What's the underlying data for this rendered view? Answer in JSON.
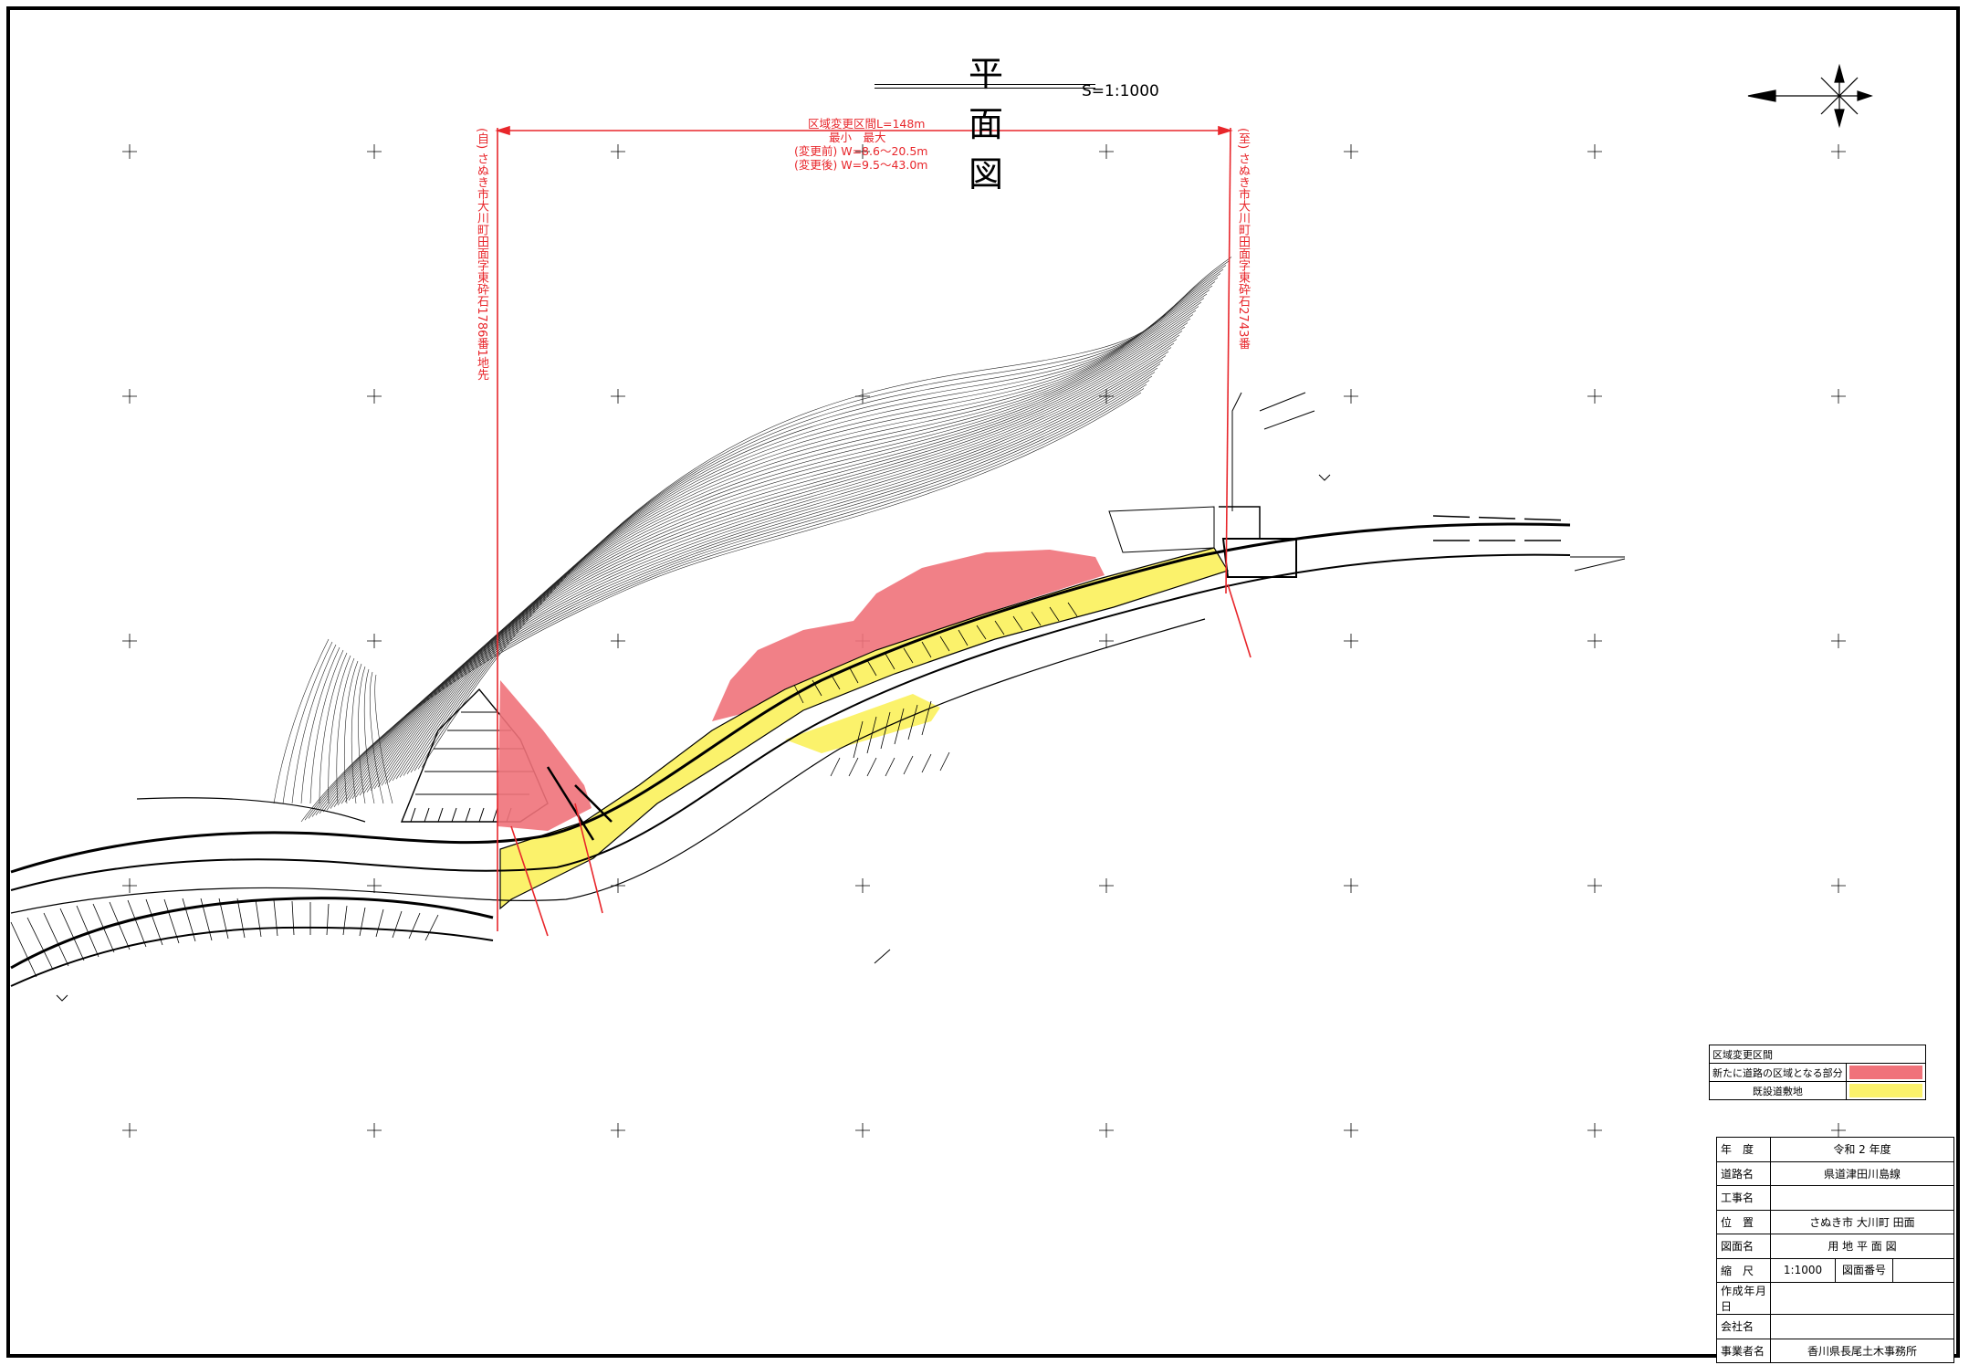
{
  "title": "平　面　図",
  "scale_text": "S=1:1000",
  "annotation": {
    "section_length": "区域変更区間L=148m",
    "header": "最小　最大",
    "before": "(変更前) W=8.6～20.5m",
    "after": "(変更後) W=9.5～43.0m"
  },
  "start_label": "(自) さぬき市大川町田面字東砕石1786番1地先",
  "end_label": "(至) さぬき市大川町田面字東砕石2743番",
  "legend": {
    "header": "区域変更区間",
    "new_area": "新たに道路の区域となる部分",
    "existing": "既設道敷地",
    "new_color": "#f0727a",
    "existing_color": "#fbf26b"
  },
  "title_block": [
    {
      "key": "年　度",
      "value": "令和 2 年度"
    },
    {
      "key": "道路名",
      "value": "県道津田川島線"
    },
    {
      "key": "工事名",
      "value": ""
    },
    {
      "key": "位　置",
      "value": "さぬき市 大川町 田面"
    },
    {
      "key": "図面名",
      "value": "用 地 平 面 図"
    },
    {
      "key": "縮　尺",
      "value": "1:1000",
      "extra_label": "図面番号"
    },
    {
      "key": "作成年月日",
      "value": ""
    },
    {
      "key": "会社名",
      "value": ""
    },
    {
      "key": "事業者名",
      "value": "香川県長尾土木事務所"
    }
  ],
  "colors": {
    "red_line": "#e8262b",
    "new_area": "#f0727a",
    "existing": "#fbf26b"
  }
}
